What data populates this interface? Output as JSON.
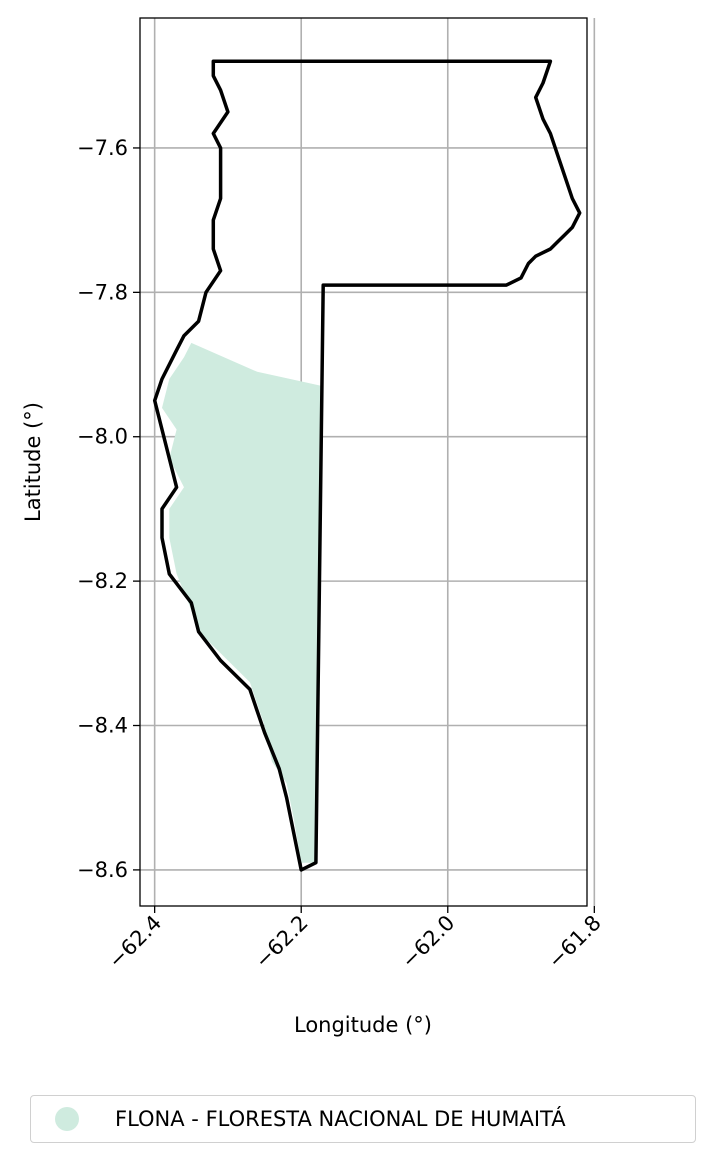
{
  "chart_data": {
    "type": "map",
    "xlabel": "Longitude (°)",
    "ylabel": "Latitude (°)",
    "xlim": [
      -62.42,
      -61.81
    ],
    "ylim": [
      -8.65,
      -7.42
    ],
    "xticks": [
      -62.4,
      -62.2,
      -62.0,
      -61.8
    ],
    "xtick_labels": [
      "−62.4",
      "−62.2",
      "−62.0",
      "−61.8"
    ],
    "yticks": [
      -7.6,
      -7.8,
      -8.0,
      -8.2,
      -8.4,
      -8.6
    ],
    "ytick_labels": [
      "−7.6",
      "−7.8",
      "−8.0",
      "−8.2",
      "−8.4",
      "−8.6"
    ],
    "grid": true,
    "boundary_color": "#000000",
    "fill_color": "#cfebdf",
    "legend": {
      "placement": "below",
      "entries": [
        {
          "name": "FLONA - FLORESTA NACIONAL DE HUMAITÁ",
          "color": "#cfebdf"
        }
      ]
    },
    "protected_area": [
      [
        -62.35,
        -7.87
      ],
      [
        -62.26,
        -7.91
      ],
      [
        -62.17,
        -7.93
      ],
      [
        -62.18,
        -8.59
      ],
      [
        -62.2,
        -8.59
      ],
      [
        -62.21,
        -8.53
      ],
      [
        -62.22,
        -8.48
      ],
      [
        -62.24,
        -8.45
      ],
      [
        -62.25,
        -8.4
      ],
      [
        -62.26,
        -8.37
      ],
      [
        -62.27,
        -8.34
      ],
      [
        -62.31,
        -8.3
      ],
      [
        -62.34,
        -8.27
      ],
      [
        -62.35,
        -8.24
      ],
      [
        -62.37,
        -8.19
      ],
      [
        -62.38,
        -8.14
      ],
      [
        -62.38,
        -8.1
      ],
      [
        -62.36,
        -8.07
      ],
      [
        -62.38,
        -8.03
      ],
      [
        -62.37,
        -7.99
      ],
      [
        -62.39,
        -7.96
      ],
      [
        -62.38,
        -7.92
      ],
      [
        -62.36,
        -7.89
      ]
    ],
    "outline": [
      [
        -62.32,
        -7.48
      ],
      [
        -61.86,
        -7.48
      ],
      [
        -61.87,
        -7.51
      ],
      [
        -61.88,
        -7.53
      ],
      [
        -61.87,
        -7.56
      ],
      [
        -61.86,
        -7.58
      ],
      [
        -61.85,
        -7.61
      ],
      [
        -61.84,
        -7.64
      ],
      [
        -61.83,
        -7.67
      ],
      [
        -61.82,
        -7.69
      ],
      [
        -61.83,
        -7.71
      ],
      [
        -61.84,
        -7.72
      ],
      [
        -61.85,
        -7.73
      ],
      [
        -61.86,
        -7.74
      ],
      [
        -61.88,
        -7.75
      ],
      [
        -61.89,
        -7.76
      ],
      [
        -61.9,
        -7.78
      ],
      [
        -61.92,
        -7.79
      ],
      [
        -62.17,
        -7.79
      ],
      [
        -62.18,
        -8.59
      ],
      [
        -62.2,
        -8.6
      ],
      [
        -62.21,
        -8.55
      ],
      [
        -62.22,
        -8.5
      ],
      [
        -62.23,
        -8.46
      ],
      [
        -62.25,
        -8.41
      ],
      [
        -62.26,
        -8.38
      ],
      [
        -62.27,
        -8.35
      ],
      [
        -62.31,
        -8.31
      ],
      [
        -62.34,
        -8.27
      ],
      [
        -62.35,
        -8.23
      ],
      [
        -62.38,
        -8.19
      ],
      [
        -62.39,
        -8.14
      ],
      [
        -62.39,
        -8.1
      ],
      [
        -62.37,
        -8.07
      ],
      [
        -62.38,
        -8.03
      ],
      [
        -62.39,
        -7.99
      ],
      [
        -62.4,
        -7.95
      ],
      [
        -62.39,
        -7.92
      ],
      [
        -62.37,
        -7.88
      ],
      [
        -62.36,
        -7.86
      ],
      [
        -62.34,
        -7.84
      ],
      [
        -62.33,
        -7.8
      ],
      [
        -62.31,
        -7.77
      ],
      [
        -62.32,
        -7.74
      ],
      [
        -62.32,
        -7.7
      ],
      [
        -62.31,
        -7.67
      ],
      [
        -62.31,
        -7.63
      ],
      [
        -62.31,
        -7.6
      ],
      [
        -62.32,
        -7.58
      ],
      [
        -62.3,
        -7.55
      ],
      [
        -62.31,
        -7.52
      ],
      [
        -62.32,
        -7.5
      ]
    ]
  }
}
